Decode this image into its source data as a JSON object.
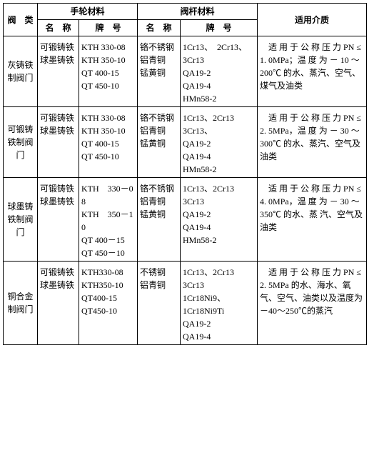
{
  "header": {
    "valve_type": "阀　类",
    "handwheel_mat": "手轮材料",
    "stem_mat": "阀杆材料",
    "media": "适用介质",
    "name": "名　称",
    "grade": "牌　号"
  },
  "rows": [
    {
      "valve_type": "灰铸铁制阀门",
      "hand_name": "可锻铸铁\n球墨铸铁",
      "hand_grade": "KTH 330-08\nKTH 350-10\nQT 400-15\nQT 450-10",
      "stem_name": "铬不锈钢\n铝青铜\n锰黄铜",
      "stem_grade": "1Cr13、　2Cr13、\n3Cr13\nQA19-2\nQA19-4\nHMn58-2",
      "media": "适 用 于 公 称 压 力 PN ≤ 1. 0MPa；温 度 为 － 10 ～　200℃ 的水、蒸汽、空气、煤气及油类"
    },
    {
      "valve_type": "可锻铸铁制阀门",
      "hand_name": "可锻铸铁\n球墨铸铁",
      "hand_grade": "KTH 330-08\nKTH 350-10\nQT 400-15\nQT 450-10",
      "stem_name": "铬不锈钢\n铝青铜\n锰黄铜",
      "stem_grade": "1Cr13、2Cr13\n3Cr13、\nQA19-2\nQA19-4\nHMn58-2",
      "media": "适 用 于 公 称 压 力 PN ≤ 2. 5MPa，温 度 为 － 30 ～　300℃ 的水、蒸汽、空气及油类"
    },
    {
      "valve_type": "球墨铸铁制阀门",
      "hand_name": "可锻铸铁\n球墨铸铁",
      "hand_grade": "KTH　330－08\nKTH　350－10\nQT 400－15\nQT 450－10",
      "stem_name": "铬不锈钢\n铝青铜\n锰黄铜",
      "stem_grade": "1Cr13、2Cr13\n3Cr13\nQA19-2\nQA19-4\nHMn58-2",
      "media": "适 用 于 公 称 压 力 PN ≤ 4. 0MPa，温 度 为 － 30 ～　350℃ 的水、蒸 汽、空气及油类"
    },
    {
      "valve_type": "铜合金制阀门",
      "hand_name": "可锻铸铁\n球墨铸铁",
      "hand_grade": "KTH330-08\nKTH350-10\nQT400-15\nQT450-10",
      "stem_name": "不锈钢\n铝青铜",
      "stem_grade": "1Cr13、2Cr13\n3Cr13\n1Cr18Ni9、\n1Cr18Ni9Ti\nQA19-2\nQA19-4",
      "media": "适 用 于 公 称 压 力 PN ≤ 2. 5MPa 的水、海水、氧气、空气、油类以及温度为－40～250℃的蒸汽"
    }
  ]
}
